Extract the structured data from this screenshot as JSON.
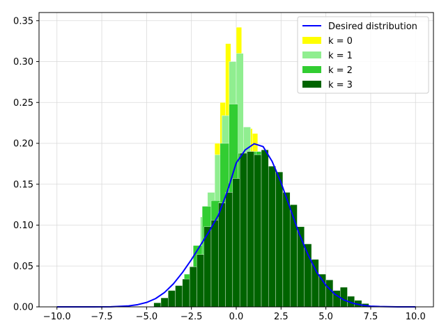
{
  "chart_data": {
    "type": "histogram",
    "xlim": [
      -11.0,
      11.0
    ],
    "ylim": [
      0,
      0.36
    ],
    "xticks": [
      -10,
      -7.5,
      -5,
      -2.5,
      0,
      2.5,
      5,
      7.5,
      10
    ],
    "xtick_labels": [
      "−10.0",
      "−7.5",
      "−5.0",
      "−2.5",
      "0.0",
      "2.5",
      "5.0",
      "7.5",
      "10.0"
    ],
    "yticks": [
      0,
      0.05,
      0.1,
      0.15,
      0.2,
      0.25,
      0.3,
      0.35
    ],
    "ytick_labels": [
      "0.00",
      "0.05",
      "0.10",
      "0.15",
      "0.20",
      "0.25",
      "0.30",
      "0.35"
    ],
    "grid": true,
    "legend_position": "top-right",
    "curve": {
      "name": "Desired distribution",
      "color": "#0000ff",
      "x": [
        -10,
        -9,
        -8,
        -7,
        -6,
        -5.5,
        -5,
        -4.5,
        -4,
        -3.5,
        -3,
        -2.5,
        -2,
        -1.5,
        -1,
        -0.5,
        0,
        0.5,
        1,
        1.5,
        2,
        2.5,
        3,
        3.5,
        4,
        4.5,
        5,
        5.5,
        6,
        6.5,
        7,
        7.5,
        8,
        9,
        10
      ],
      "y": [
        0.0,
        0.0,
        0.0,
        0.0001,
        0.0012,
        0.0027,
        0.0054,
        0.0101,
        0.0176,
        0.0283,
        0.042,
        0.0578,
        0.0752,
        0.0926,
        0.112,
        0.141,
        0.176,
        0.192,
        0.1995,
        0.196,
        0.178,
        0.152,
        0.121,
        0.09,
        0.064,
        0.042,
        0.0265,
        0.0154,
        0.0085,
        0.0045,
        0.0021,
        0.0009,
        0.0004,
        0.0,
        0.0
      ]
    },
    "series": [
      {
        "name": "k = 0",
        "color": "#ffff00",
        "bins": [
          [
            -1.8,
            -1.5,
            0.082
          ],
          [
            -1.5,
            -1.2,
            0.125
          ],
          [
            -1.2,
            -0.9,
            0.2
          ],
          [
            -0.9,
            -0.6,
            0.25
          ],
          [
            -0.6,
            -0.3,
            0.322
          ],
          [
            -0.3,
            0.0,
            0.278
          ],
          [
            0.0,
            0.3,
            0.342
          ],
          [
            0.3,
            0.6,
            0.215
          ],
          [
            0.6,
            0.9,
            0.218
          ],
          [
            0.9,
            1.2,
            0.212
          ],
          [
            1.2,
            1.5,
            0.088
          ],
          [
            1.5,
            1.8,
            0.105
          ]
        ]
      },
      {
        "name": "k = 1",
        "color": "#90ee90",
        "bins": [
          [
            -2.4,
            -2.0,
            0.06
          ],
          [
            -2.0,
            -1.6,
            0.11
          ],
          [
            -1.6,
            -1.2,
            0.14
          ],
          [
            -1.2,
            -0.8,
            0.186
          ],
          [
            -0.8,
            -0.4,
            0.234
          ],
          [
            -0.4,
            0.0,
            0.3
          ],
          [
            0.0,
            0.4,
            0.31
          ],
          [
            0.4,
            0.8,
            0.22
          ],
          [
            0.8,
            1.2,
            0.16
          ],
          [
            1.2,
            1.6,
            0.08
          ],
          [
            1.6,
            2.0,
            0.06
          ]
        ]
      },
      {
        "name": "k = 2",
        "color": "#32cd32",
        "bins": [
          [
            -3.4,
            -2.9,
            0.02
          ],
          [
            -2.9,
            -2.4,
            0.04
          ],
          [
            -2.4,
            -1.9,
            0.075
          ],
          [
            -1.9,
            -1.4,
            0.123
          ],
          [
            -1.4,
            -0.9,
            0.13
          ],
          [
            -0.9,
            -0.4,
            0.2
          ],
          [
            -0.4,
            0.1,
            0.248
          ],
          [
            0.1,
            0.6,
            0.188
          ],
          [
            0.6,
            1.1,
            0.19
          ],
          [
            1.1,
            1.6,
            0.19
          ],
          [
            1.6,
            2.1,
            0.17
          ],
          [
            2.1,
            2.6,
            0.12
          ],
          [
            2.6,
            3.1,
            0.08
          ],
          [
            3.1,
            3.6,
            0.05
          ]
        ]
      },
      {
        "name": "k = 3",
        "color": "#006400",
        "bins": [
          [
            -4.6,
            -4.2,
            0.005
          ],
          [
            -4.2,
            -3.8,
            0.011
          ],
          [
            -3.8,
            -3.4,
            0.02
          ],
          [
            -3.4,
            -3.0,
            0.026
          ],
          [
            -3.0,
            -2.6,
            0.034
          ],
          [
            -2.6,
            -2.2,
            0.049
          ],
          [
            -2.2,
            -1.8,
            0.064
          ],
          [
            -1.8,
            -1.4,
            0.098
          ],
          [
            -1.4,
            -1.0,
            0.106
          ],
          [
            -1.0,
            -0.6,
            0.127
          ],
          [
            -0.6,
            -0.2,
            0.14
          ],
          [
            -0.2,
            0.2,
            0.157
          ],
          [
            0.2,
            0.6,
            0.188
          ],
          [
            0.6,
            1.0,
            0.19
          ],
          [
            1.0,
            1.4,
            0.186
          ],
          [
            1.4,
            1.8,
            0.192
          ],
          [
            1.8,
            2.2,
            0.172
          ],
          [
            2.2,
            2.6,
            0.165
          ],
          [
            2.6,
            3.0,
            0.14
          ],
          [
            3.0,
            3.4,
            0.125
          ],
          [
            3.4,
            3.8,
            0.098
          ],
          [
            3.8,
            4.2,
            0.077
          ],
          [
            4.2,
            4.6,
            0.058
          ],
          [
            4.6,
            5.0,
            0.04
          ],
          [
            5.0,
            5.4,
            0.033
          ],
          [
            5.4,
            5.8,
            0.02
          ],
          [
            5.8,
            6.2,
            0.024
          ],
          [
            6.2,
            6.6,
            0.013
          ],
          [
            6.6,
            7.0,
            0.008
          ],
          [
            7.0,
            7.4,
            0.004
          ]
        ]
      }
    ]
  }
}
